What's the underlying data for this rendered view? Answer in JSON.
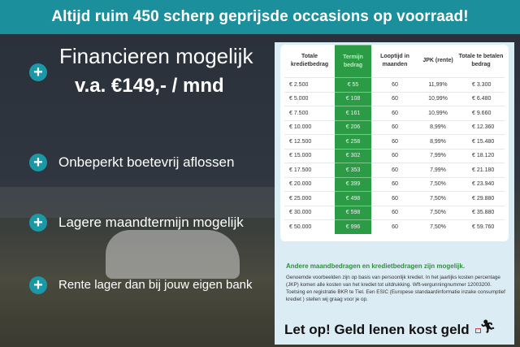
{
  "banner": {
    "title": "Altijd ruim 450 scherp geprijsde occasions op voorraad!",
    "color": "#1c8f9d"
  },
  "features": [
    {
      "icon": "plus-icon",
      "line1": "Financieren mogelijk",
      "line2": "v.a. €149,- / mnd"
    },
    {
      "icon": "plus-icon",
      "label": "Onbeperkt boetevrij aflossen"
    },
    {
      "icon": "plus-icon",
      "label": "Lagere maandtermijn mogelijk"
    },
    {
      "icon": "plus-icon",
      "label": "Rente lager dan bij jouw eigen bank"
    }
  ],
  "table": {
    "headers": [
      "Totale kredietbedrag",
      "Termijn bedrag",
      "Looptijd in maanden",
      "JPK (rente)",
      "Totale te betalen bedrag"
    ],
    "highlight_color": "#2c9b45",
    "rows": [
      [
        "€ 2.500",
        "€ 55",
        "60",
        "11,99%",
        "€ 3.300"
      ],
      [
        "€ 5.000",
        "€ 108",
        "60",
        "10,99%",
        "€ 6.480"
      ],
      [
        "€ 7.500",
        "€ 161",
        "60",
        "10,99%",
        "€ 9.660"
      ],
      [
        "€ 10.000",
        "€ 206",
        "60",
        "8,99%",
        "€ 12.360"
      ],
      [
        "€ 12.500",
        "€ 258",
        "60",
        "8,99%",
        "€ 15.480"
      ],
      [
        "€ 15.000",
        "€ 302",
        "60",
        "7,99%",
        "€ 18.120"
      ],
      [
        "€ 17.500",
        "€ 353",
        "60",
        "7,99%",
        "€ 21.180"
      ],
      [
        "€ 20.000",
        "€ 399",
        "60",
        "7,50%",
        "€ 23.940"
      ],
      [
        "€ 25.000",
        "€ 498",
        "60",
        "7,50%",
        "€ 29.880"
      ],
      [
        "€ 30.000",
        "€ 598",
        "60",
        "7,50%",
        "€ 35.880"
      ],
      [
        "€ 50.000",
        "€ 996",
        "60",
        "7,50%",
        "€ 59.760"
      ]
    ]
  },
  "note": {
    "title": "Andere maandbedragen en kredietbedragen zijn mogelijk.",
    "body": "Genoemde voorbeelden zijn op basis van persoonlijk krediet. In het jaarlijks kosten percentage (JKP) komen alle kosten van het krediet tot uitdrukking. Wft-vergunningnummer 12003200. Toetsing en registratie BKR te Tiel. Een ESIC (Europese standaardinformatie inzake consumptief krediet ) stellen wij graag voor je op.",
    "warning": "Let op! Geld lenen kost geld",
    "warning_icon": "running-man-with-ball-and-chain-icon"
  }
}
